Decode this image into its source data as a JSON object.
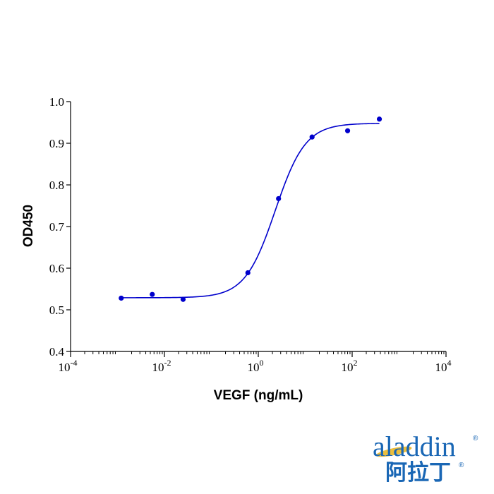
{
  "chart_data": {
    "type": "scatter",
    "title": "",
    "xlabel": "VEGF (ng/mL)",
    "ylabel": "OD450",
    "xscale": "log",
    "xlim": [
      0.0001,
      10000
    ],
    "ylim": [
      0.4,
      1.0
    ],
    "x_ticks": [
      {
        "base": "10",
        "exp": "-4"
      },
      {
        "base": "10",
        "exp": "-2"
      },
      {
        "base": "10",
        "exp": "0"
      },
      {
        "base": "10",
        "exp": "2"
      },
      {
        "base": "10",
        "exp": "4"
      }
    ],
    "y_ticks": [
      "0.4",
      "0.5",
      "0.6",
      "0.7",
      "0.8",
      "0.9",
      "1.0"
    ],
    "grid": false,
    "series": [
      {
        "color": "#0000cc",
        "points": [
          {
            "x": 0.0012,
            "y": 0.528
          },
          {
            "x": 0.0055,
            "y": 0.537
          },
          {
            "x": 0.025,
            "y": 0.525
          },
          {
            "x": 0.6,
            "y": 0.589
          },
          {
            "x": 2.7,
            "y": 0.767
          },
          {
            "x": 14,
            "y": 0.915
          },
          {
            "x": 80,
            "y": 0.93
          },
          {
            "x": 380,
            "y": 0.958
          }
        ],
        "fit": {
          "model": "4PL",
          "bottom": 0.529,
          "top": 0.948,
          "ec50": 2.3,
          "hill": 1.35
        }
      }
    ]
  },
  "logo": {
    "latin": "aladdin",
    "cjk": "阿拉丁",
    "mark": "®",
    "accent_color": "#e8b31b",
    "brand_color": "#1a67b5"
  }
}
